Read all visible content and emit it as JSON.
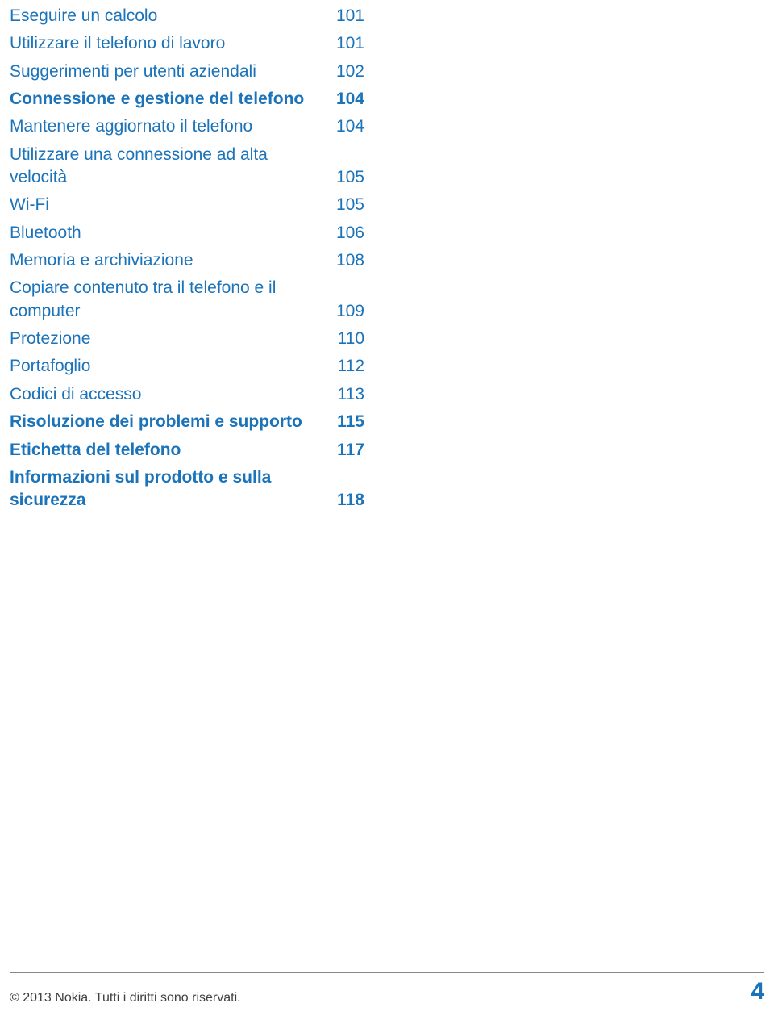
{
  "toc": {
    "entries": [
      {
        "label": "Eseguire un calcolo",
        "page": "101",
        "bold": false
      },
      {
        "label": "Utilizzare il telefono di lavoro",
        "page": "101",
        "bold": false
      },
      {
        "label": "Suggerimenti per utenti aziendali",
        "page": "102",
        "bold": false
      },
      {
        "label": "Connessione e gestione del telefono",
        "page": "104",
        "bold": true
      },
      {
        "label": "Mantenere aggiornato il telefono",
        "page": "104",
        "bold": false
      },
      {
        "label": "Utilizzare una connessione ad alta velocità",
        "page": "105",
        "bold": false
      },
      {
        "label": "Wi-Fi",
        "page": "105",
        "bold": false
      },
      {
        "label": "Bluetooth",
        "page": "106",
        "bold": false
      },
      {
        "label": "Memoria e archiviazione",
        "page": "108",
        "bold": false
      },
      {
        "label": "Copiare contenuto tra il telefono e il computer",
        "page": "109",
        "bold": false
      },
      {
        "label": "Protezione",
        "page": "110",
        "bold": false
      },
      {
        "label": "Portafoglio",
        "page": "112",
        "bold": false
      },
      {
        "label": "Codici di accesso",
        "page": "113",
        "bold": false
      },
      {
        "label": "Risoluzione dei problemi e supporto",
        "page": "115",
        "bold": true
      },
      {
        "label": "Etichetta del telefono",
        "page": "117",
        "bold": true
      },
      {
        "label": "Informazioni sul prodotto e sulla sicurezza",
        "page": "118",
        "bold": true
      }
    ]
  },
  "footer": {
    "copyright": "© 2013 Nokia. Tutti i diritti sono riservati.",
    "page_number": "4"
  },
  "colors": {
    "link": "#1b73b9",
    "footer_text": "#404040",
    "divider": "#888888",
    "background": "#ffffff"
  },
  "typography": {
    "link_fontsize": 21,
    "footer_left_fontsize": 16,
    "footer_right_fontsize": 30
  }
}
